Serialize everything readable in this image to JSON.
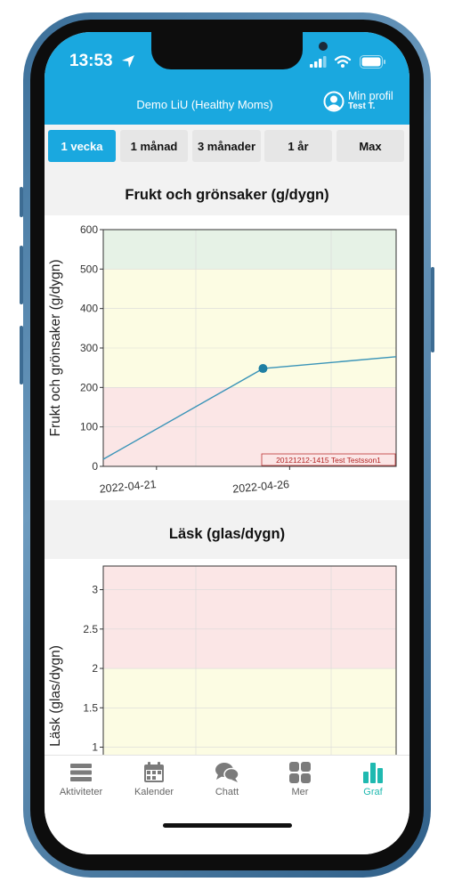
{
  "status_bar": {
    "time": "13:53"
  },
  "app": {
    "title": "Demo LiU (Healthy Moms)",
    "profile_label": "Min profil",
    "profile_user": "Test T."
  },
  "tabs": [
    {
      "label": "1 vecka",
      "active": true
    },
    {
      "label": "1 månad",
      "active": false
    },
    {
      "label": "3 månader",
      "active": false
    },
    {
      "label": "1 år",
      "active": false
    },
    {
      "label": "Max",
      "active": false
    }
  ],
  "nav": [
    {
      "label": "Aktiviteter",
      "icon": "list-icon",
      "active": false
    },
    {
      "label": "Kalender",
      "icon": "calendar-icon",
      "active": false
    },
    {
      "label": "Chatt",
      "icon": "chat-icon",
      "active": false
    },
    {
      "label": "Mer",
      "icon": "grid-icon",
      "active": false
    },
    {
      "label": "Graf",
      "icon": "bar-chart-icon",
      "active": true
    }
  ],
  "colors": {
    "accent": "#1aa8df",
    "graf_active": "#1fb9b0",
    "zone_green": "#e6f2e6",
    "zone_yellow": "#fcfce3",
    "zone_red": "#fbe6e6",
    "line": "#3a94b8"
  },
  "chart_data": [
    {
      "type": "line",
      "title": "Frukt och grönsaker (g/dygn)",
      "ylabel": "Frukt och grönsaker (g/dygn)",
      "xlabel": "",
      "ylim": [
        0,
        600
      ],
      "yticks": [
        0,
        100,
        200,
        300,
        400,
        500,
        600
      ],
      "x_tick_labels": [
        "2022-04-21",
        "2022-04-26"
      ],
      "series": [
        {
          "x": [
            "2022-04-19",
            "2022-04-25",
            "2022-04-30"
          ],
          "y": [
            18,
            248,
            278
          ],
          "marker_at": "2022-04-25"
        }
      ],
      "zones": [
        {
          "from": 0,
          "to": 200,
          "color": "red"
        },
        {
          "from": 200,
          "to": 500,
          "color": "yellow"
        },
        {
          "from": 500,
          "to": 600,
          "color": "green"
        }
      ],
      "annotation": "20121212-1415  Test Testsson1",
      "grid": true
    },
    {
      "type": "line",
      "title": "Läsk (glas/dygn)",
      "ylabel": "Läsk (glas/dygn)",
      "xlabel": "",
      "ylim": [
        0,
        3.3
      ],
      "yticks": [
        1,
        1.5,
        2,
        2.5,
        3
      ],
      "series": [],
      "zones": [
        {
          "from": 0,
          "to": 2,
          "color": "yellow"
        },
        {
          "from": 2,
          "to": 3.3,
          "color": "red"
        }
      ],
      "grid": true
    }
  ]
}
